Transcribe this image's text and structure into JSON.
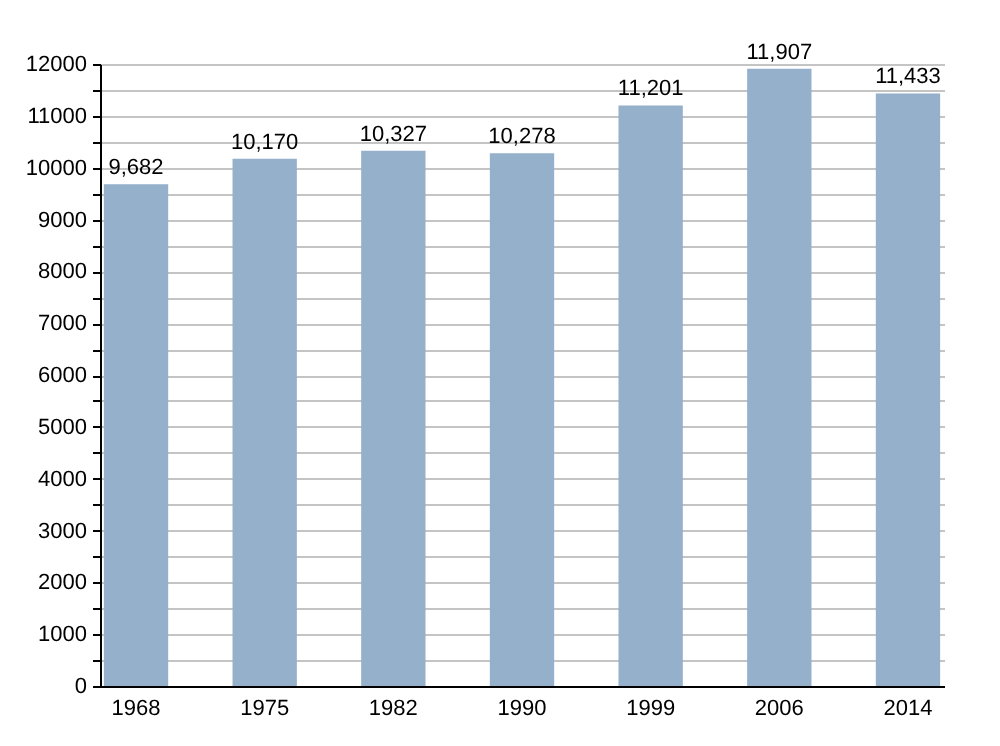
{
  "chart_data": {
    "type": "bar",
    "categories": [
      "1968",
      "1975",
      "1982",
      "1990",
      "1999",
      "2006",
      "2014"
    ],
    "values": [
      9682,
      10170,
      10327,
      10278,
      11201,
      11907,
      11433
    ],
    "value_labels": [
      "9,682",
      "10,170",
      "10,327",
      "10,278",
      "11,201",
      "11,907",
      "11,433"
    ],
    "color": "#94b0cb",
    "ylim": [
      0,
      12000
    ],
    "yticks": [
      0,
      {
        "value": 500,
        "label": null
      },
      1000,
      {
        "value": 1500,
        "label": null
      },
      2000,
      {
        "value": 2500,
        "label": null
      },
      3000,
      {
        "value": 3500,
        "label": null
      },
      4000,
      {
        "value": 4500,
        "label": null
      },
      5000,
      {
        "value": 5500,
        "label": null
      },
      6000,
      {
        "value": 6500,
        "label": null
      },
      7000,
      {
        "value": 7500,
        "label": null
      },
      8000,
      {
        "value": 8500,
        "label": null
      },
      9000,
      {
        "value": 9500,
        "label": null
      },
      10000,
      {
        "value": 10500,
        "label": null
      },
      11000,
      {
        "value": 11500,
        "label": null
      },
      12000
    ],
    "grid": true
  }
}
